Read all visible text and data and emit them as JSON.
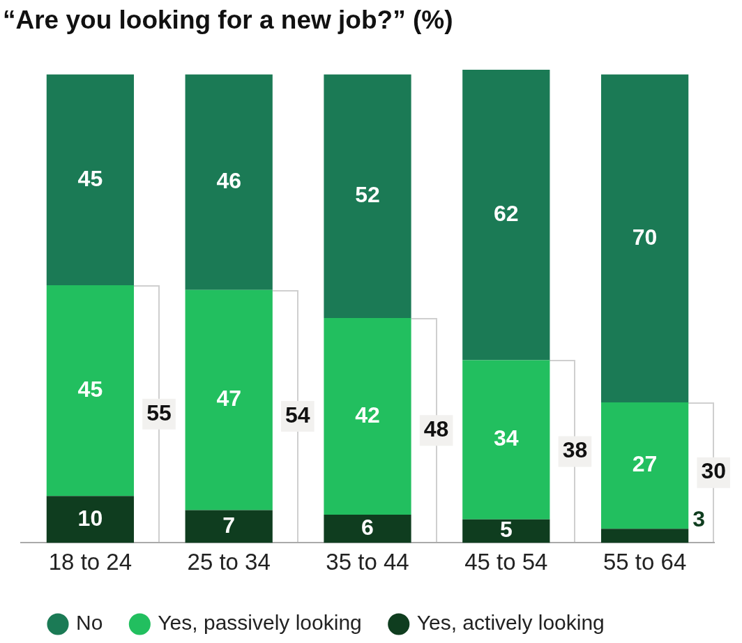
{
  "chart_data": {
    "type": "bar",
    "title": "“Are you looking for a new job?” (%)",
    "categories": [
      "18 to 24",
      "25 to 34",
      "35 to 44",
      "45 to 54",
      "55 to 64"
    ],
    "stacked": true,
    "series": [
      {
        "name": "Yes, actively looking",
        "color": "#0f3d1f",
        "values": [
          10,
          7,
          6,
          5,
          3
        ]
      },
      {
        "name": "Yes, passively looking",
        "color": "#22bf5f",
        "values": [
          45,
          47,
          42,
          34,
          27
        ]
      },
      {
        "name": "No",
        "color": "#1b7a55",
        "values": [
          45,
          46,
          52,
          62,
          70
        ]
      }
    ],
    "annotations": [
      "55",
      "54",
      "48",
      "38",
      "30"
    ],
    "ylim": [
      0,
      101
    ],
    "tick_labels": "x",
    "data_labels": true,
    "grid": false,
    "legend": "bottom"
  }
}
